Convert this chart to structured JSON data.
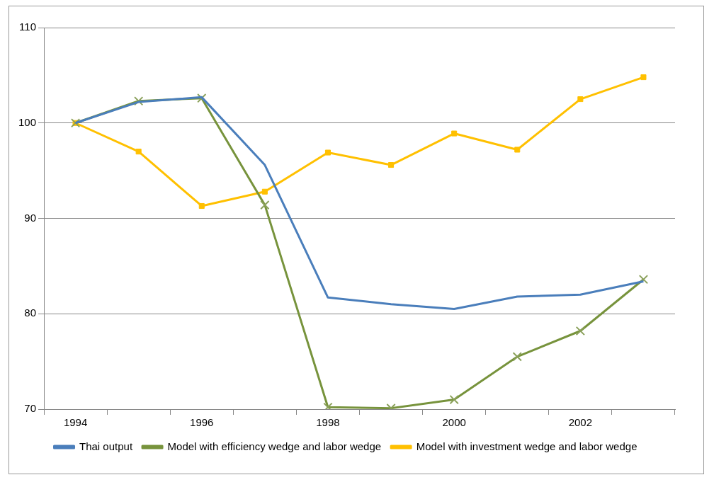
{
  "chart_data": {
    "type": "line",
    "categories": [
      "1994",
      null,
      "1996",
      null,
      "1998",
      null,
      "2000",
      null,
      "2002",
      null
    ],
    "series": [
      {
        "name": "Thai output",
        "color": "#4a7ebb",
        "marker": "none",
        "values": [
          100,
          102.2,
          102.7,
          95.6,
          81.7,
          81.0,
          80.5,
          81.8,
          82.0,
          83.4
        ]
      },
      {
        "name": "Model with efficiency wedge and labor wedge",
        "color": "#77933c",
        "marker": "cross",
        "values": [
          100,
          102.3,
          102.6,
          91.4,
          70.2,
          70.1,
          71.0,
          75.5,
          78.2,
          83.6
        ]
      },
      {
        "name": "Model with investment wedge and labor wedge",
        "color": "#ffc000",
        "marker": "square",
        "values": [
          100,
          97.0,
          91.3,
          92.8,
          96.9,
          95.6,
          98.9,
          97.2,
          102.5,
          104.8
        ]
      }
    ],
    "ylim": [
      70,
      110
    ],
    "yticks": [
      70,
      80,
      90,
      100,
      110
    ],
    "grid": "y",
    "legend": "bottom",
    "line_style": "solid"
  }
}
